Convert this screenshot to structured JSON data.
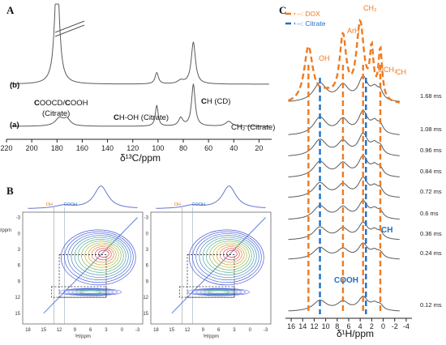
{
  "chart_data": [
    {
      "panel": "A",
      "type": "line",
      "xlabel": "δ¹³C/ppm",
      "xlim": [
        220,
        10
      ],
      "xticks": [
        220,
        200,
        180,
        160,
        140,
        120,
        100,
        80,
        60,
        40,
        20
      ],
      "series": [
        {
          "name": "(b)",
          "peaks_ppm": [
            180,
            101,
            72
          ]
        },
        {
          "name": "(a)",
          "peaks_ppm": [
            178,
            172,
            101,
            82,
            72,
            44
          ]
        }
      ],
      "annotations": [
        {
          "text": "COOCD/COOH (Citrate)",
          "ppm": 172
        },
        {
          "text": "CH-OH (Citrate)",
          "ppm": 101
        },
        {
          "text": "CH (CD)",
          "ppm": 72
        },
        {
          "text": "CH₂ (Citrate)",
          "ppm": 44
        }
      ],
      "labels": {
        "b": "(b)",
        "a": "(a)"
      }
    },
    {
      "panel": "B",
      "type": "heatmap",
      "subplots": 2,
      "xlabel": "¹H/ppm",
      "ylabel": "¹H/ppm",
      "xticks": [
        18,
        15,
        12,
        9,
        6,
        3,
        0,
        -3
      ],
      "yticks": [
        -3,
        0,
        3,
        6,
        9,
        12,
        15
      ],
      "annotations": [
        "OH",
        "COOH"
      ]
    },
    {
      "panel": "C",
      "type": "line",
      "xlabel": "δ¹H/ppm",
      "xlim": [
        17,
        -5
      ],
      "xticks": [
        16,
        14,
        12,
        10,
        8,
        6,
        4,
        2,
        0,
        -2,
        -4
      ],
      "legend": [
        "DOX",
        "Citrate"
      ],
      "dox_lines_ppm": [
        13.0,
        7.0,
        3.5,
        0.5
      ],
      "citrate_lines_ppm": [
        11.0,
        3.0
      ],
      "peak_labels": {
        "OH": "OH",
        "ArH": "ArH",
        "CH2": "CH₂",
        "OCH3": "OCH₃",
        "CH": "CH",
        "CH_citrate": "CH",
        "COOH": "COOH"
      },
      "mixing_times": [
        "1.68 ms",
        "1.08 ms",
        "0.96 ms",
        "0.84 ms",
        "0.72 ms",
        "0.6 ms",
        "0.36 ms",
        "0.24 ms",
        "0.12 ms"
      ]
    }
  ],
  "panels": {
    "a": "A",
    "b": "B",
    "c": "C"
  },
  "legend_c": {
    "dox": "--: DOX",
    "citrate": "--: Citrate"
  }
}
